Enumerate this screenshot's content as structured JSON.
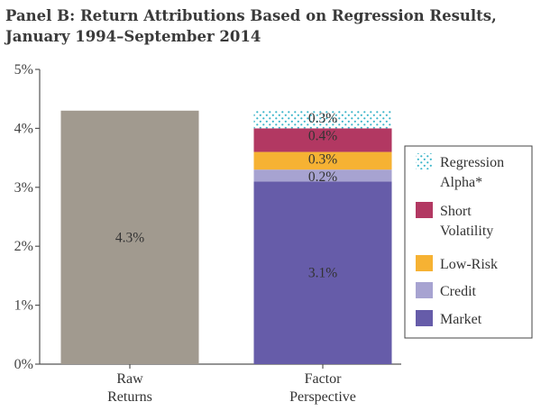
{
  "chart_data": {
    "type": "bar",
    "stacked": true,
    "title": "Panel B: Return Attributions Based on Regression Results,",
    "subtitle": "January 1994–September 2014",
    "xlabel": "",
    "ylabel": "",
    "ylim": [
      0,
      5
    ],
    "y_ticks": [
      0,
      1,
      2,
      3,
      4,
      5
    ],
    "y_tick_labels": [
      "0%",
      "1%",
      "2%",
      "3%",
      "4%",
      "5%"
    ],
    "categories": [
      [
        "Raw",
        "Returns"
      ],
      [
        "Factor",
        "Perspective"
      ]
    ],
    "grid": false,
    "legend_position": "right",
    "raw_bar": {
      "value": 4.3,
      "label": "4.3%",
      "color": "#a19a8f"
    },
    "series": [
      {
        "name": "Market",
        "value": 3.1,
        "label": "3.1%",
        "color": "#665ca9",
        "pattern": false
      },
      {
        "name": "Credit",
        "value": 0.2,
        "label": "0.2%",
        "color": "#a7a3d1",
        "pattern": false
      },
      {
        "name": "Low-Risk",
        "value": 0.3,
        "label": "0.3%",
        "color": "#f6b233",
        "pattern": false
      },
      {
        "name": "Short Volatility",
        "value": 0.4,
        "label": "0.4%",
        "color": "#b23862",
        "pattern": false
      },
      {
        "name": "Regression Alpha*",
        "value": 0.3,
        "label": "0.3%",
        "color": "#39b5c9",
        "pattern": true
      }
    ],
    "legend": [
      {
        "lines": [
          "Regression",
          "Alpha*"
        ],
        "series": "Regression Alpha*"
      },
      {
        "lines": [
          "Short",
          "Volatility"
        ],
        "series": "Short Volatility"
      },
      {
        "lines": [
          "Low-Risk"
        ],
        "series": "Low-Risk"
      },
      {
        "lines": [
          "Credit"
        ],
        "series": "Credit"
      },
      {
        "lines": [
          "Market"
        ],
        "series": "Market"
      }
    ]
  }
}
